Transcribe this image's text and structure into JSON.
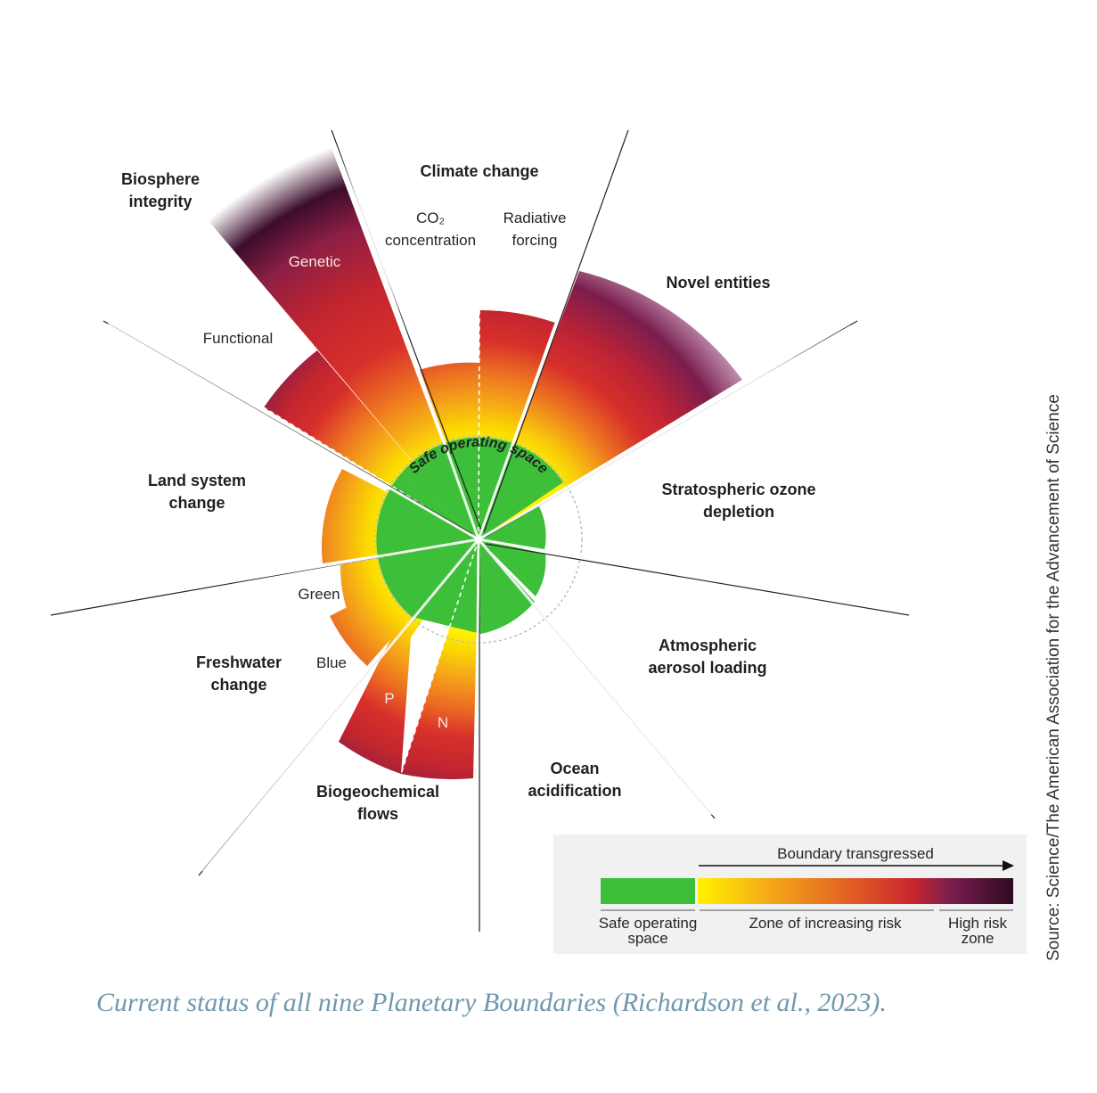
{
  "caption": "Current status of all nine Planetary Boundaries (Richardson et al., 2023).",
  "source": "Source: Science/The American Association for the Advancement of Science",
  "center_label": "Safe operating space",
  "boundaries": {
    "climate": "Climate change",
    "co2_line1": "CO₂",
    "co2_line2": "concentration",
    "rf_line1": "Radiative",
    "rf_line2": "forcing",
    "novel": "Novel entities",
    "ozone_line1": "Stratospheric ozone",
    "ozone_line2": "depletion",
    "aerosol_line1": "Atmospheric",
    "aerosol_line2": "aerosol loading",
    "ocean_line1": "Ocean",
    "ocean_line2": "acidification",
    "biogeo_line1": "Biogeochemical",
    "biogeo_line2": "flows",
    "p": "P",
    "n": "N",
    "freshwater_line1": "Freshwater",
    "freshwater_line2": "change",
    "green": "Green",
    "blue": "Blue",
    "land_line1": "Land system",
    "land_line2": "change",
    "biosphere_line1": "Biosphere",
    "biosphere_line2": "integrity",
    "functional": "Functional",
    "genetic": "Genetic"
  },
  "legend": {
    "arrow_label": "Boundary transgressed",
    "safe_line1": "Safe operating",
    "safe_line2": "space",
    "zone": "Zone of increasing risk",
    "high_line1": "High risk",
    "high_line2": "zone"
  },
  "colors": {
    "safe": "#3dbf3a",
    "yellow": "#fff200",
    "orange": "#f28c1e",
    "red": "#d22c2c",
    "purple": "#7a1e4e",
    "dark": "#2e0a22",
    "caption": "#6f98ad"
  }
}
